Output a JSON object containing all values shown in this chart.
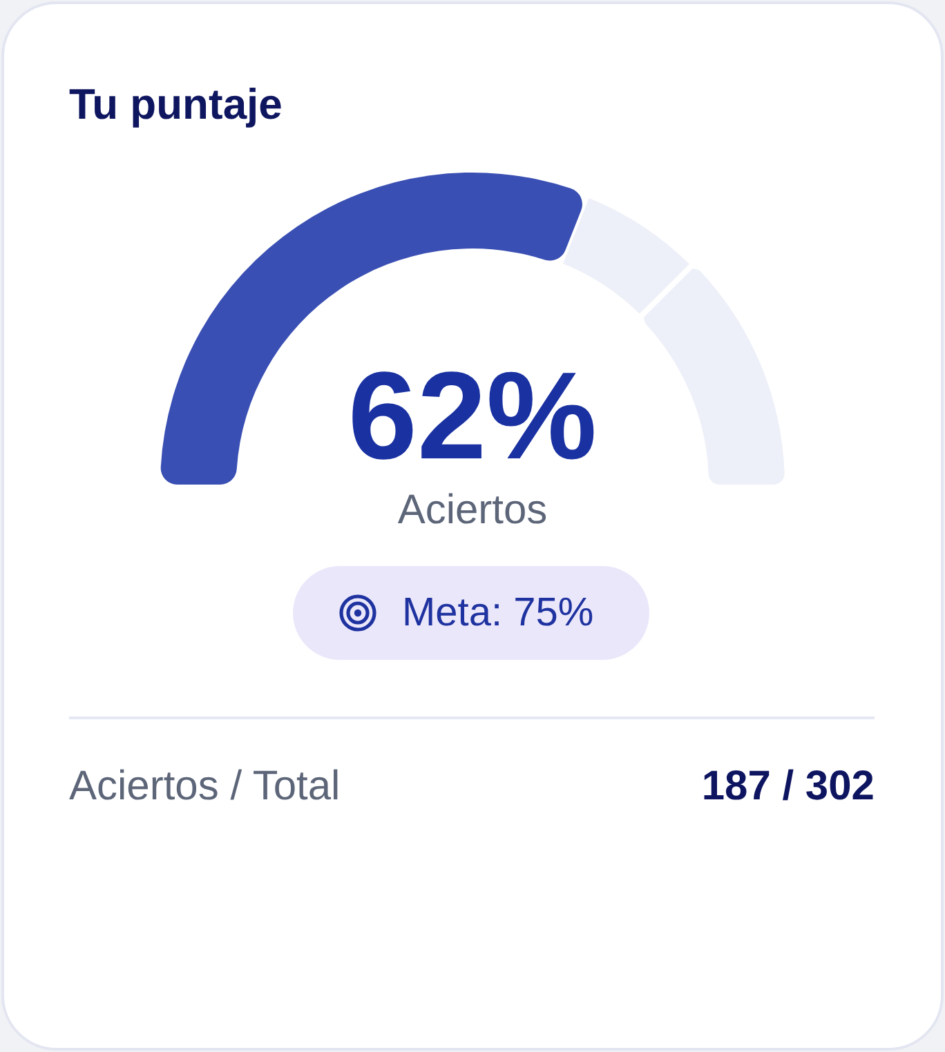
{
  "chart_data": {
    "type": "donut",
    "title": "Tu puntaje",
    "categories": [
      "Aciertos",
      null,
      null
    ],
    "values": [
      62,
      13,
      25
    ],
    "colors": [
      "#3a4fb3",
      "#edf0f8",
      "#edf0f8"
    ],
    "value_labels": [
      "62%",
      null,
      null
    ],
    "annotations": [
      "Meta: 75%",
      "Aciertos / Total",
      "187 / 302"
    ]
  }
}
